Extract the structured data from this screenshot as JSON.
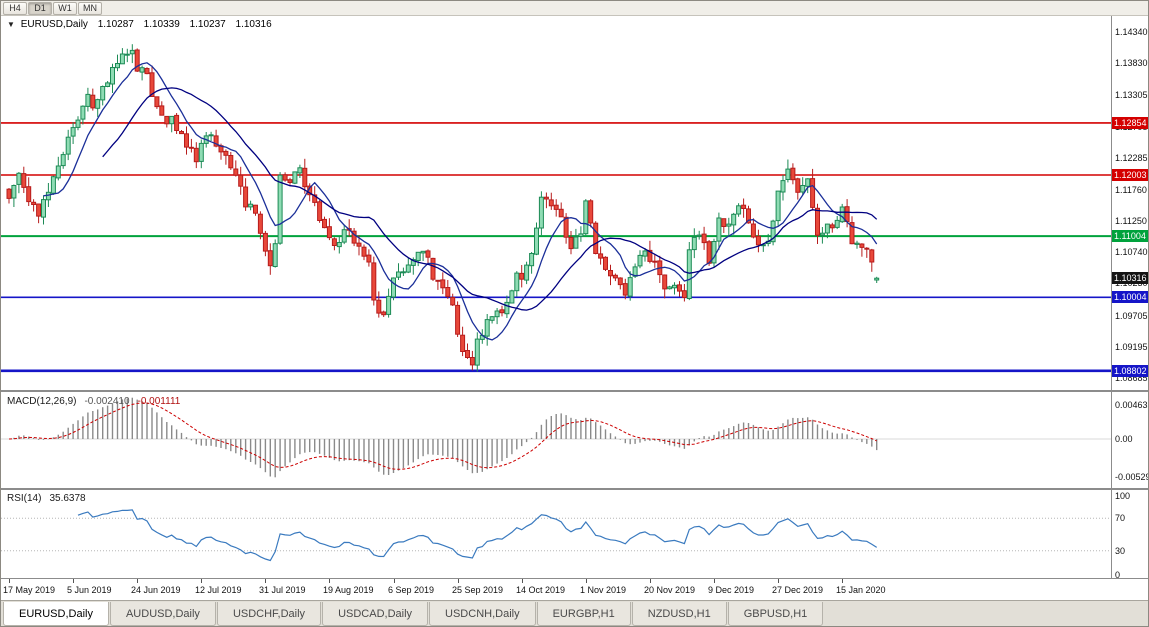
{
  "toolbar": {
    "timeframes": [
      {
        "label": "H4",
        "active": false
      },
      {
        "label": "D1",
        "active": true
      },
      {
        "label": "W1",
        "active": false
      },
      {
        "label": "MN",
        "active": false
      }
    ]
  },
  "chart": {
    "dropdown_icon": "▼",
    "symbol_label": "EURUSD,Daily",
    "ohlc": {
      "open": "1.10287",
      "high": "1.10339",
      "low": "1.10237",
      "close": "1.10316"
    }
  },
  "chart_data": {
    "type": "candlestick",
    "title": "EURUSD,Daily",
    "num_candles": 177,
    "price_range": {
      "top": 1.1434,
      "bottom": 1.08685
    },
    "y_axis_ticks": [
      {
        "text": "1.14340",
        "value": 1.1434
      },
      {
        "text": "1.13830",
        "value": 1.1383
      },
      {
        "text": "1.13305",
        "value": 1.13305
      },
      {
        "text": "1.12795",
        "value": 1.12795
      },
      {
        "text": "1.12285",
        "value": 1.12285
      },
      {
        "text": "1.11760",
        "value": 1.1176
      },
      {
        "text": "1.11250",
        "value": 1.1125
      },
      {
        "text": "1.10740",
        "value": 1.1074
      },
      {
        "text": "1.10230",
        "value": 1.1023
      },
      {
        "text": "1.09705",
        "value": 1.09705
      },
      {
        "text": "1.09195",
        "value": 1.09195
      },
      {
        "text": "1.08685",
        "value": 1.08685
      }
    ],
    "x_axis_dates": [
      {
        "text": "17 May 2019",
        "i": 0
      },
      {
        "text": "5 Jun 2019",
        "i": 13
      },
      {
        "text": "24 Jun 2019",
        "i": 26
      },
      {
        "text": "12 Jul 2019",
        "i": 39
      },
      {
        "text": "31 Jul 2019",
        "i": 52
      },
      {
        "text": "19 Aug 2019",
        "i": 65
      },
      {
        "text": "6 Sep 2019",
        "i": 78
      },
      {
        "text": "25 Sep 2019",
        "i": 91
      },
      {
        "text": "14 Oct 2019",
        "i": 104
      },
      {
        "text": "1 Nov 2019",
        "i": 117
      },
      {
        "text": "20 Nov 2019",
        "i": 130
      },
      {
        "text": "9 Dec 2019",
        "i": 143
      },
      {
        "text": "27 Dec 2019",
        "i": 156
      },
      {
        "text": "15 Jan 2020",
        "i": 169
      }
    ],
    "hlines": [
      {
        "text": "1.12854",
        "value": 1.12854,
        "color": "#d40000",
        "width": 1.6
      },
      {
        "text": "1.12003",
        "value": 1.12003,
        "color": "#d40000",
        "width": 1.6
      },
      {
        "text": "1.11004",
        "value": 1.11004,
        "color": "#00a23c",
        "width": 2
      },
      {
        "text": "1.10004",
        "value": 1.10004,
        "color": "#1515c8",
        "width": 1.6
      },
      {
        "text": "1.08802",
        "value": 1.08802,
        "color": "#1515c8",
        "width": 2.6
      }
    ],
    "current_price_tag": {
      "text": "1.10316",
      "value": 1.10316,
      "color": "#141414"
    },
    "last_ohlc": {
      "open": 1.10287,
      "high": 1.10339,
      "low": 1.10237,
      "close": 1.10316
    },
    "close_anchors": [
      [
        0,
        1.1162
      ],
      [
        2,
        1.1203
      ],
      [
        3,
        1.118
      ],
      [
        5,
        1.1152
      ],
      [
        6,
        1.1133
      ],
      [
        8,
        1.1172
      ],
      [
        10,
        1.1215
      ],
      [
        12,
        1.1262
      ],
      [
        14,
        1.129
      ],
      [
        16,
        1.1332
      ],
      [
        17,
        1.131
      ],
      [
        19,
        1.1345
      ],
      [
        21,
        1.1376
      ],
      [
        23,
        1.1398
      ],
      [
        25,
        1.1404
      ],
      [
        26,
        1.137
      ],
      [
        28,
        1.1366
      ],
      [
        30,
        1.1312
      ],
      [
        32,
        1.1284
      ],
      [
        33,
        1.1296
      ],
      [
        35,
        1.1268
      ],
      [
        36,
        1.1246
      ],
      [
        38,
        1.1222
      ],
      [
        39,
        1.1252
      ],
      [
        41,
        1.1266
      ],
      [
        43,
        1.1238
      ],
      [
        45,
        1.1212
      ],
      [
        47,
        1.1182
      ],
      [
        48,
        1.1148
      ],
      [
        50,
        1.1138
      ],
      [
        52,
        1.1076
      ],
      [
        53,
        1.1052
      ],
      [
        54,
        1.1088
      ],
      [
        55,
        1.12
      ],
      [
        57,
        1.1188
      ],
      [
        59,
        1.1212
      ],
      [
        61,
        1.1168
      ],
      [
        63,
        1.1126
      ],
      [
        65,
        1.1098
      ],
      [
        67,
        1.109
      ],
      [
        69,
        1.111
      ],
      [
        71,
        1.1084
      ],
      [
        73,
        1.1058
      ],
      [
        74,
        1.0996
      ],
      [
        76,
        1.0972
      ],
      [
        78,
        1.1032
      ],
      [
        80,
        1.1042
      ],
      [
        82,
        1.1062
      ],
      [
        83,
        1.1074
      ],
      [
        85,
        1.1066
      ],
      [
        86,
        1.103
      ],
      [
        88,
        1.1016
      ],
      [
        90,
        1.0988
      ],
      [
        91,
        1.094
      ],
      [
        93,
        1.0902
      ],
      [
        94,
        1.089
      ],
      [
        95,
        1.0932
      ],
      [
        97,
        1.0964
      ],
      [
        99,
        1.0978
      ],
      [
        101,
        1.0992
      ],
      [
        103,
        1.104
      ],
      [
        104,
        1.103
      ],
      [
        106,
        1.1072
      ],
      [
        108,
        1.1164
      ],
      [
        110,
        1.115
      ],
      [
        112,
        1.1132
      ],
      [
        114,
        1.108
      ],
      [
        116,
        1.1104
      ],
      [
        117,
        1.1158
      ],
      [
        119,
        1.1072
      ],
      [
        121,
        1.1046
      ],
      [
        123,
        1.1032
      ],
      [
        125,
        1.1004
      ],
      [
        127,
        1.105
      ],
      [
        129,
        1.1076
      ],
      [
        131,
        1.1058
      ],
      [
        133,
        1.1014
      ],
      [
        135,
        1.102
      ],
      [
        137,
        1.1
      ],
      [
        138,
        1.1078
      ],
      [
        140,
        1.1102
      ],
      [
        142,
        1.1056
      ],
      [
        144,
        1.113
      ],
      [
        146,
        1.112
      ],
      [
        148,
        1.115
      ],
      [
        150,
        1.1122
      ],
      [
        152,
        1.1086
      ],
      [
        154,
        1.1092
      ],
      [
        156,
        1.1174
      ],
      [
        158,
        1.121
      ],
      [
        160,
        1.1172
      ],
      [
        162,
        1.1194
      ],
      [
        164,
        1.1102
      ],
      [
        166,
        1.112
      ],
      [
        168,
        1.1126
      ],
      [
        169,
        1.1148
      ],
      [
        171,
        1.1088
      ],
      [
        173,
        1.1082
      ],
      [
        175,
        1.1058
      ],
      [
        176,
        1.10316
      ]
    ],
    "moving_averages": [
      {
        "period": 8,
        "color": "#1b2f99"
      },
      {
        "period": 20,
        "color": "#000080"
      }
    ],
    "seed": 11,
    "wiggle": 0.0011,
    "wick": 0.0016
  },
  "macd": {
    "name": "MACD(12,26,9)",
    "value_main": "-0.002410",
    "value_signal": "-0.001111",
    "params": {
      "fast": 12,
      "slow": 26,
      "signal": 9
    },
    "axis": [
      {
        "text": "0.00463",
        "value": 0.00463
      },
      {
        "text": "0.00",
        "value": 0
      },
      {
        "text": "-0.00529",
        "value": -0.00529
      }
    ],
    "histogram_color": "#8a8a8a",
    "signal_color": "#cc0000"
  },
  "rsi": {
    "name": "RSI(14)",
    "value": "35.6378",
    "period": 14,
    "axis": [
      {
        "text": "100",
        "value": 100
      },
      {
        "text": "70",
        "value": 70
      },
      {
        "text": "30",
        "value": 30
      },
      {
        "text": "0",
        "value": 0
      }
    ],
    "line_color": "#3a7abf",
    "levels": [
      70,
      30
    ]
  },
  "colors": {
    "bull_fill": "#8fdcb4",
    "bull_stroke": "#1c8a55",
    "bear_fill": "#e8483a",
    "bear_stroke": "#b71c1c",
    "axis_text": "#111111"
  },
  "tabs": [
    {
      "label": "EURUSD,Daily",
      "active": true
    },
    {
      "label": "AUDUSD,Daily",
      "active": false
    },
    {
      "label": "USDCHF,Daily",
      "active": false
    },
    {
      "label": "USDCAD,Daily",
      "active": false
    },
    {
      "label": "USDCNH,Daily",
      "active": false
    },
    {
      "label": "EURGBP,H1",
      "active": false
    },
    {
      "label": "NZDUSD,H1",
      "active": false
    },
    {
      "label": "GBPUSD,H1",
      "active": false
    }
  ]
}
